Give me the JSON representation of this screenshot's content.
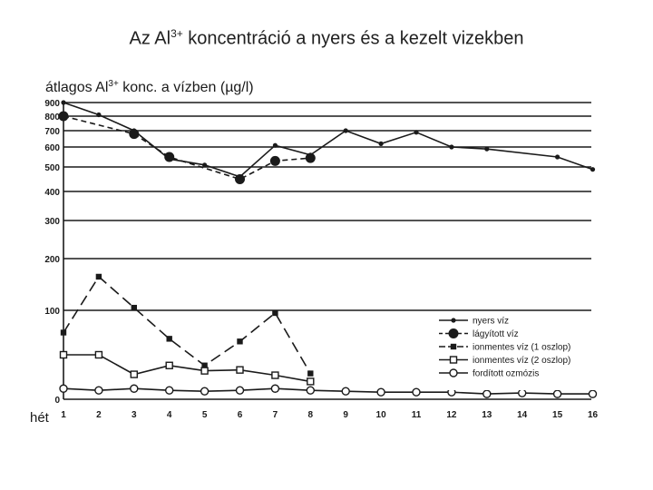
{
  "slide": {
    "title_pre": "Az Al",
    "title_sup": "3+",
    "title_post": " koncentráció a nyers és a kezelt vizekben"
  },
  "colors": {
    "ink": "#1a1a1a",
    "background": "#ffffff"
  },
  "chart_data": {
    "type": "line",
    "ylabel_pre": "átlagos Al",
    "ylabel_sup": "3+",
    "ylabel_post": " konc. a vízben (µg/l)",
    "xlabel": "hét",
    "x": [
      1,
      2,
      3,
      4,
      5,
      6,
      7,
      8,
      9,
      10,
      11,
      12,
      13,
      14,
      15,
      16
    ],
    "x_ticks": [
      "1",
      "2",
      "3",
      "4",
      "5",
      "6",
      "7",
      "8",
      "9",
      "10",
      "11",
      "12",
      "13",
      "14",
      "15",
      "16"
    ],
    "y_ticks": [
      0,
      100,
      200,
      300,
      400,
      500,
      600,
      700,
      800,
      900
    ],
    "ylim": [
      0,
      900
    ],
    "grid": true,
    "legend_position": "bottom-right",
    "series": [
      {
        "name": "nyers víz",
        "marker": "dot",
        "dash": "solid",
        "values": [
          900,
          810,
          700,
          540,
          510,
          460,
          610,
          560,
          700,
          620,
          690,
          600,
          590,
          null,
          550,
          490
        ]
      },
      {
        "name": "lágyított víz",
        "marker": "bigdot",
        "dash": "dashed",
        "values": [
          800,
          null,
          680,
          550,
          null,
          450,
          530,
          545,
          null,
          null,
          null,
          null,
          null,
          null,
          null,
          null
        ]
      },
      {
        "name": "ionmentes víz (1 oszlop)",
        "marker": "square",
        "dash": "longdash",
        "values": [
          75,
          165,
          105,
          68,
          38,
          65,
          97,
          29,
          null,
          null,
          null,
          null,
          null,
          null,
          null,
          null
        ]
      },
      {
        "name": "ionmentes víz (2 oszlop)",
        "marker": "opensquare",
        "dash": "solid",
        "values": [
          50,
          50,
          28,
          38,
          32,
          33,
          27,
          20,
          null,
          null,
          null,
          null,
          null,
          null,
          null,
          null
        ]
      },
      {
        "name": "fordított ozmózis",
        "marker": "opencircle",
        "dash": "solid",
        "values": [
          12,
          10,
          12,
          10,
          9,
          10,
          12,
          10,
          9,
          8,
          8,
          8,
          6,
          7,
          6,
          6
        ]
      }
    ]
  }
}
